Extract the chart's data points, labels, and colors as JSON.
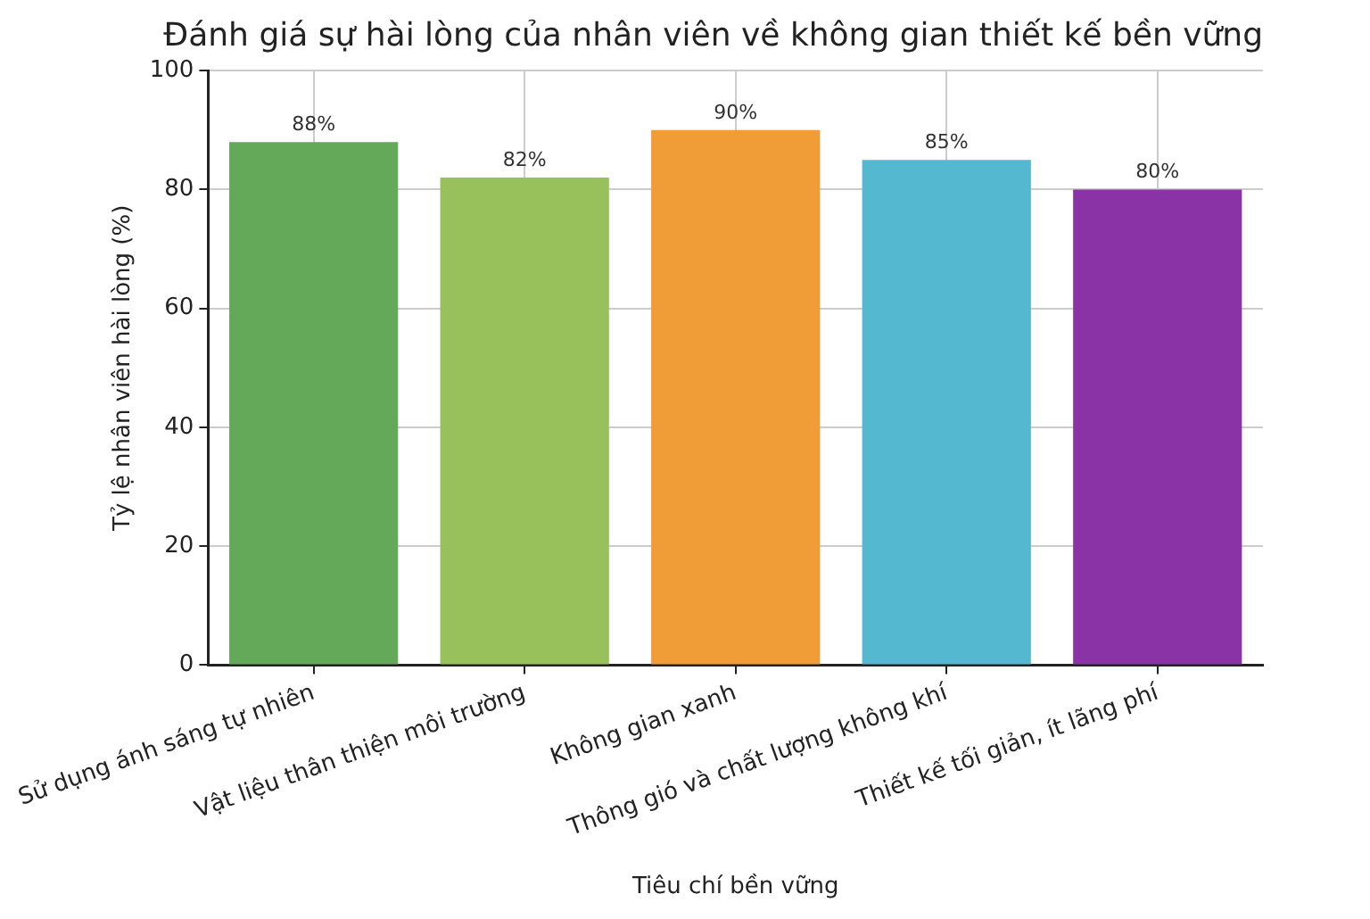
{
  "chart_data": {
    "type": "bar",
    "title": "Đánh giá sự hài lòng của nhân viên về không gian thiết kế bền vững",
    "xlabel": "Tiêu chí bền vững",
    "ylabel": "Tỷ lệ nhân viên hài lòng (%)",
    "categories": [
      "Sử dụng ánh sáng tự nhiên",
      "Vật liệu thân thiện môi trường",
      "Không gian xanh",
      "Thông gió và chất lượng không khí",
      "Thiết kế tối giản, ít lãng phí"
    ],
    "values": [
      88,
      82,
      90,
      85,
      80
    ],
    "colors": [
      "#64a85a",
      "#98c15c",
      "#f09d38",
      "#53b8d0",
      "#8a33a6"
    ],
    "value_labels": [
      "88%",
      "82%",
      "90%",
      "85%",
      "80%"
    ],
    "ylim": [
      0,
      100
    ],
    "yticks": [
      0,
      20,
      40,
      60,
      80,
      100
    ],
    "grid": true,
    "legend": false
  }
}
